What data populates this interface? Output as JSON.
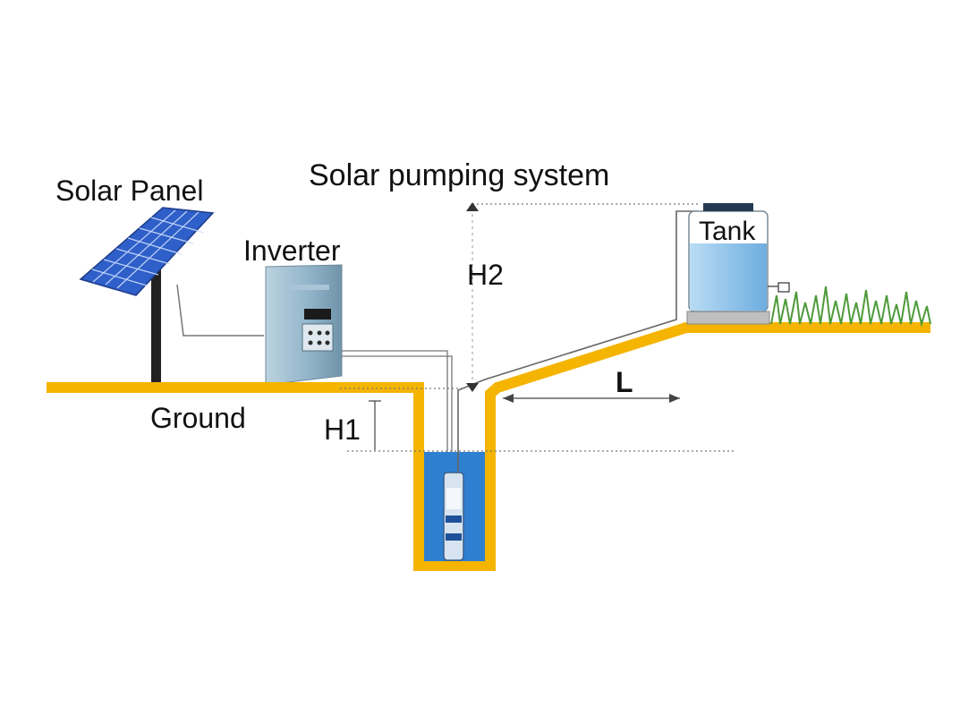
{
  "diagram": {
    "title": "Solar pumping system",
    "labels": {
      "solar_panel": "Solar Panel",
      "inverter": "Inverter",
      "tank": "Tank",
      "ground": "Ground",
      "h1": "H1",
      "h2": "H2",
      "l": "L"
    },
    "colors": {
      "ground": "#F4B400",
      "water": "#2F7FD0",
      "panel": "#2F5FC8",
      "inverter": "#8FB2C8",
      "tank_water": "#8CC3EE",
      "grass": "#4E9A3A",
      "pipe": "#666666"
    }
  }
}
